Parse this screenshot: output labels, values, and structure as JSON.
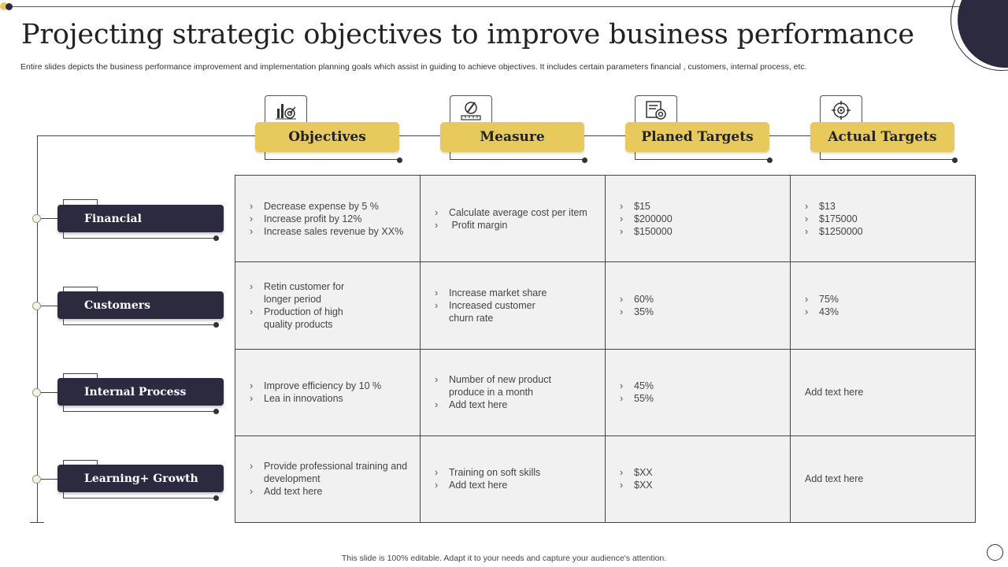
{
  "title": "Projecting strategic objectives to improve business performance",
  "subtitle": "Entire slides depicts the business performance improvement and implementation  planning goals  which assist in guiding to achieve objectives. It includes certain parameters financial , customers, internal process, etc.",
  "columns": [
    {
      "label": "Objectives",
      "icon": "target-chart-icon"
    },
    {
      "label": "Measure",
      "icon": "pen-ruler-icon"
    },
    {
      "label": "Planed Targets",
      "icon": "target-document-icon"
    },
    {
      "label": "Actual Targets",
      "icon": "crosshair-icon"
    }
  ],
  "rows": [
    {
      "label": "Financial"
    },
    {
      "label": "Customers"
    },
    {
      "label": "Internal Process"
    },
    {
      "label": "Learning+ Growth"
    }
  ],
  "cells": {
    "r0": {
      "objectives": [
        "Decrease expense by 5 %",
        "Increase profit  by 12%",
        "Increase sales revenue  by XX%"
      ],
      "measure": [
        "Calculate average  cost per item",
        " Profit margin"
      ],
      "planned": [
        "$15",
        "$200000",
        "$150000"
      ],
      "actual": [
        "$13",
        "$175000",
        "$1250000"
      ]
    },
    "r1": {
      "objectives": [
        "Retin customer for longer period",
        "Production of high quality products"
      ],
      "measure": [
        "Increase market share",
        "Increased customer churn rate"
      ],
      "planned": [
        "60%",
        "35%"
      ],
      "actual": [
        "75%",
        "43%"
      ]
    },
    "r2": {
      "objectives": [
        "Improve  efficiency by 10 %",
        "Lea in innovations"
      ],
      "measure": [
        "Number of new  product produce in a month",
        "Add text here"
      ],
      "planned": [
        "45%",
        "55%"
      ],
      "actual_text": "Add text here"
    },
    "r3": {
      "objectives": [
        "Provide  professional training and development",
        "Add text here"
      ],
      "measure": [
        "Training  on soft skills",
        "Add text here"
      ],
      "planned": [
        "$XX",
        "$XX"
      ],
      "actual_text": "Add text here"
    }
  },
  "footer": "This slide is 100% editable.  Adapt it to your needs and capture your audience's attention.",
  "colors": {
    "accent": "#e8c95c",
    "dark": "#2b2a3f",
    "cell_bg": "#f1f1f1"
  }
}
